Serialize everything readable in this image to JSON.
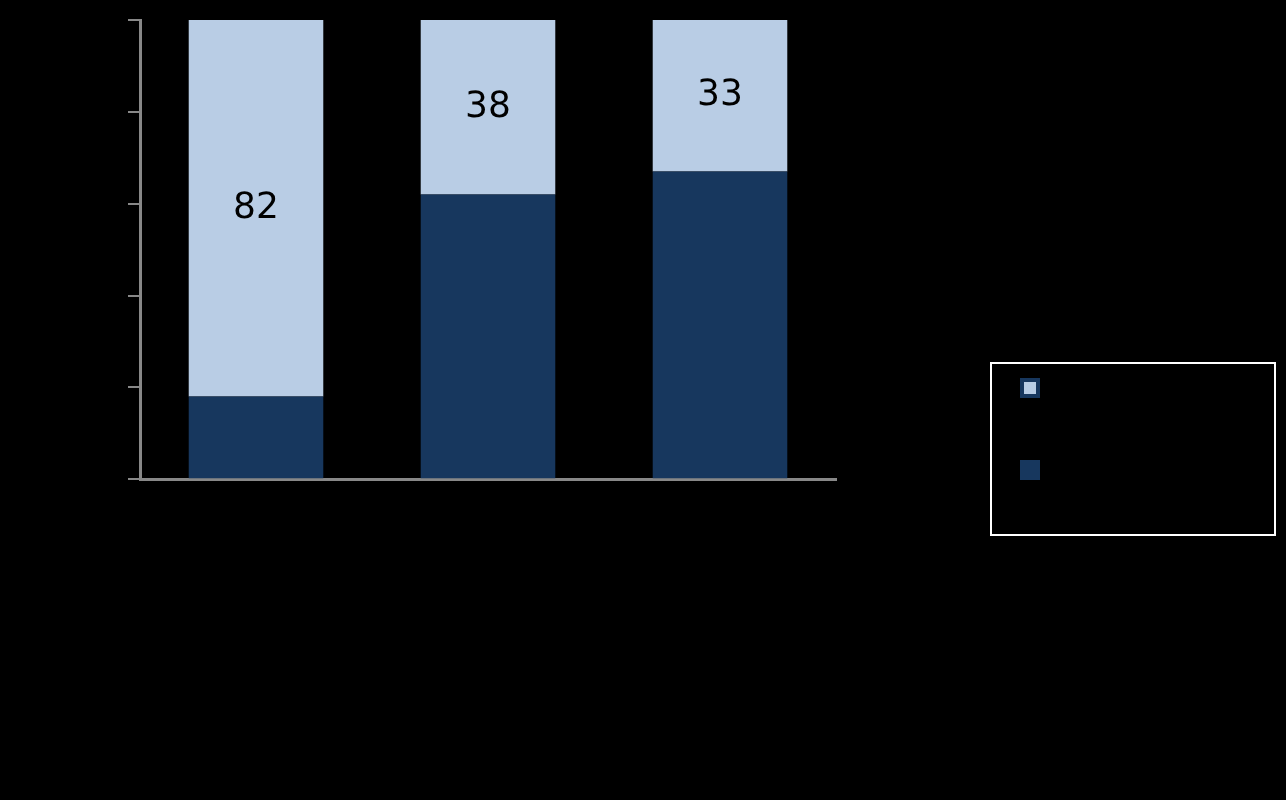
{
  "chart_data": {
    "type": "bar",
    "stacked": true,
    "categories": [
      null,
      null,
      null
    ],
    "series": [
      {
        "color": "#17375e",
        "values": [
          18,
          62,
          67
        ]
      },
      {
        "color": "#b9cde5",
        "values": [
          82,
          38,
          33
        ],
        "value_labels": [
          "82",
          "38",
          "33"
        ]
      }
    ],
    "ylim": [
      0,
      100
    ],
    "yticks": [
      {
        "value": 0,
        "label": null
      },
      {
        "value": 20,
        "label": null
      },
      {
        "value": 40,
        "label": null
      },
      {
        "value": 60,
        "label": null
      },
      {
        "value": 80,
        "label": null
      },
      {
        "value": 100,
        "label": null
      }
    ],
    "grid": false
  }
}
